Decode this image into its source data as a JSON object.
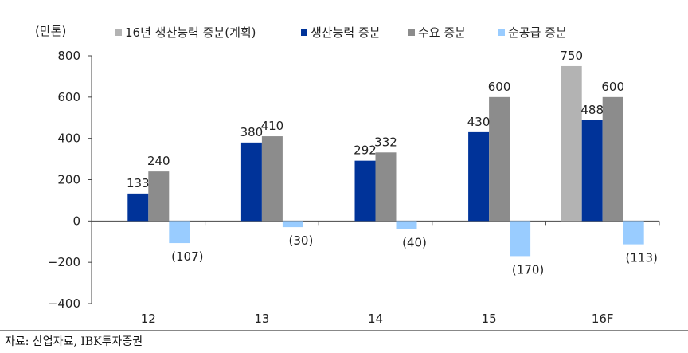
{
  "chart_data": {
    "type": "bar",
    "unit_label": "(만톤)",
    "categories": [
      "12",
      "13",
      "14",
      "15",
      "16F"
    ],
    "ylim": [
      -400,
      800
    ],
    "yticks": [
      800,
      600,
      400,
      200,
      0,
      -200,
      -400
    ],
    "ytick_labels": [
      "800",
      "600",
      "400",
      "200",
      "0",
      "−200",
      "−400"
    ],
    "legend_position": "top",
    "grid": false,
    "series": [
      {
        "name": "16년 생산능력 증분(계획)",
        "color": "#b3b3b3",
        "values": [
          null,
          null,
          null,
          null,
          750
        ],
        "labels": [
          "",
          "",
          "",
          "",
          "750"
        ]
      },
      {
        "name": "생산능력 증분",
        "color": "#003399",
        "values": [
          133,
          380,
          292,
          430,
          488
        ],
        "labels": [
          "133",
          "380",
          "292",
          "430",
          "488"
        ]
      },
      {
        "name": "수요 증분",
        "color": "#8c8c8c",
        "values": [
          240,
          410,
          332,
          600,
          600
        ],
        "labels": [
          "240",
          "410",
          "332",
          "600",
          "600"
        ]
      },
      {
        "name": "순공급 증분",
        "color": "#99ccff",
        "values": [
          -107,
          -30,
          -40,
          -170,
          -113
        ],
        "labels": [
          "(107)",
          "(30)",
          "(40)",
          "(170)",
          "(113)"
        ]
      }
    ]
  },
  "source": "자료: 산업자료, IBK투자증권"
}
